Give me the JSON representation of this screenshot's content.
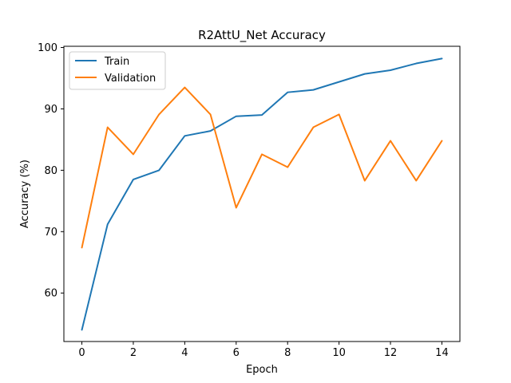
{
  "chart_data": {
    "type": "line",
    "title": "R2AttU_Net Accuracy",
    "xlabel": "Epoch",
    "ylabel": "Accuracy (%)",
    "x": [
      0,
      1,
      2,
      3,
      4,
      5,
      6,
      7,
      8,
      9,
      10,
      11,
      12,
      13,
      14
    ],
    "xlim": [
      -0.7,
      14.7
    ],
    "ylim": [
      52.1,
      100.2
    ],
    "xticks": [
      0,
      2,
      4,
      6,
      8,
      10,
      12,
      14
    ],
    "yticks": [
      60,
      70,
      80,
      90,
      100
    ],
    "grid": false,
    "legend_position": "top-left",
    "series": [
      {
        "name": "Train",
        "color": "#1f77b4",
        "values": [
          54.0,
          71.2,
          78.5,
          80.0,
          85.6,
          86.4,
          88.8,
          89.0,
          92.7,
          93.1,
          94.4,
          95.7,
          96.3,
          97.4,
          98.2
        ]
      },
      {
        "name": "Validation",
        "color": "#ff7f0e",
        "values": [
          67.4,
          87.0,
          82.6,
          89.1,
          93.5,
          89.1,
          73.9,
          82.6,
          80.5,
          87.0,
          89.1,
          78.3,
          84.8,
          78.3,
          84.8
        ]
      }
    ]
  }
}
